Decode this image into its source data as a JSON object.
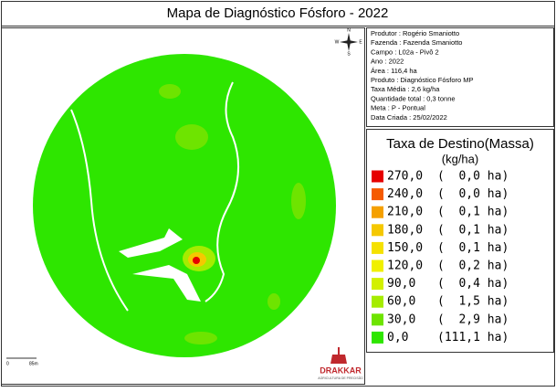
{
  "header": {
    "title": "Mapa de Diagnóstico Fósforo - 2022"
  },
  "info": [
    "Produtor : Rogério Smaniotto",
    "Fazenda :  Fazenda Smaniotto",
    "Campo : L02a - Pivô 2",
    "Ano : 2022",
    "Área : 116,4 ha",
    "Produto : Diagnóstico Fósforo MP",
    "Taxa Média : 2,6 kg/ha",
    "Quantidade total : 0,3 tonne",
    "Meta : P - Pontual",
    "Data Criada : 25/02/2022"
  ],
  "legend": {
    "title": "Taxa de Destino(Massa)",
    "unit": "(kg/ha)",
    "items": [
      {
        "rate": "270,0",
        "area": "(  0,0 ha)",
        "color": "#e60000"
      },
      {
        "rate": "240,0",
        "area": "(  0,0 ha)",
        "color": "#f55a00"
      },
      {
        "rate": "210,0",
        "area": "(  0,1 ha)",
        "color": "#f5a000"
      },
      {
        "rate": "180,0",
        "area": "(  0,1 ha)",
        "color": "#f5c800"
      },
      {
        "rate": "150,0",
        "area": "(  0,1 ha)",
        "color": "#f5e100"
      },
      {
        "rate": "120,0",
        "area": "(  0,2 ha)",
        "color": "#f0f000"
      },
      {
        "rate": "90,0",
        "area": "(  0,4 ha)",
        "color": "#d2f000"
      },
      {
        "rate": "60,0",
        "area": "(  1,5 ha)",
        "color": "#a5ec00"
      },
      {
        "rate": "30,0",
        "area": "(  2,9 ha)",
        "color": "#6ee400"
      },
      {
        "rate": "0,0",
        "area": "(111,1 ha)",
        "color": "#2ee600"
      }
    ]
  },
  "compass": {
    "n": "N",
    "s": "S",
    "e": "E",
    "w": "W"
  },
  "scale": {
    "start": "0",
    "end": "85m"
  },
  "logo": {
    "name": "DRAKKAR",
    "tagline": "AGRICULTURA DE PRECISÃO"
  }
}
